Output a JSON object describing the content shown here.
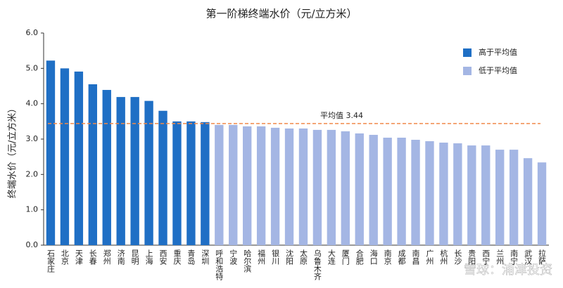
{
  "chart_data": {
    "type": "bar",
    "title": "第一阶梯终端水价（元/立方米）",
    "y_label": "终端水价（元/立方米）",
    "categories": [
      "石家庄",
      "北京",
      "天津",
      "长春",
      "郑州",
      "济南",
      "昆明",
      "上海",
      "西安",
      "重庆",
      "青岛",
      "深圳",
      "呼和浩特",
      "宁波",
      "哈尔滨",
      "福州",
      "银川",
      "沈阳",
      "太原",
      "乌鲁木齐",
      "大连",
      "厦门",
      "合肥",
      "海口",
      "南京",
      "成都",
      "南昌",
      "广州",
      "杭州",
      "长沙",
      "贵阳",
      "西宁",
      "兰州",
      "南宁",
      "武汉",
      "拉萨"
    ],
    "series": [
      {
        "name": "高于平均值",
        "color": "#1f6fc5",
        "values": [
          5.22,
          5.0,
          4.91,
          4.55,
          4.39,
          4.19,
          4.19,
          4.08,
          3.8,
          3.5,
          3.5,
          3.48,
          null,
          null,
          null,
          null,
          null,
          null,
          null,
          null,
          null,
          null,
          null,
          null,
          null,
          null,
          null,
          null,
          null,
          null,
          null,
          null,
          null,
          null,
          null,
          null
        ]
      },
      {
        "name": "低于平均值",
        "color": "#a4b6e4",
        "values": [
          null,
          null,
          null,
          null,
          null,
          null,
          null,
          null,
          null,
          null,
          null,
          null,
          3.4,
          3.4,
          3.36,
          3.36,
          3.32,
          3.3,
          3.3,
          3.26,
          3.26,
          3.22,
          3.16,
          3.12,
          3.04,
          3.04,
          2.98,
          2.94,
          2.9,
          2.88,
          2.82,
          2.82,
          2.7,
          2.7,
          2.46,
          2.34
        ]
      }
    ],
    "average": {
      "value": 3.44,
      "label": "平均值  3.44",
      "color": "#f08a4b"
    },
    "ylim": [
      0,
      6
    ],
    "yticks": [
      {
        "value": 0,
        "label": "0.0"
      },
      {
        "value": 1,
        "label": "1.0"
      },
      {
        "value": 2,
        "label": "2.0"
      },
      {
        "value": 3,
        "label": "3.0"
      },
      {
        "value": 4,
        "label": "4.0"
      },
      {
        "value": 5,
        "label": "5.0"
      },
      {
        "value": 6,
        "label": "6.0"
      }
    ],
    "legend": "top-right",
    "watermark": "雪球：浦津投资"
  }
}
